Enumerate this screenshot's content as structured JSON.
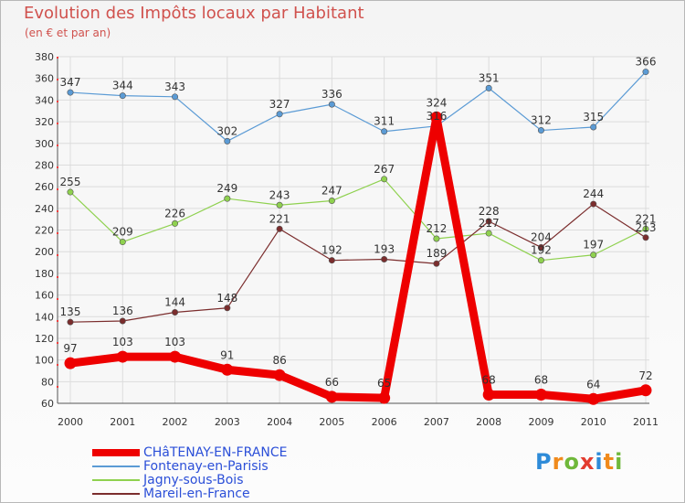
{
  "chart_data": {
    "type": "line",
    "title": "Evolution des Impôts locaux par Habitant",
    "subtitle": "(en € et par an)",
    "xlabel": "",
    "ylabel": "",
    "ylim": [
      60,
      380
    ],
    "yticks": [
      60,
      80,
      100,
      120,
      140,
      160,
      180,
      200,
      220,
      240,
      260,
      280,
      300,
      320,
      340,
      360,
      380
    ],
    "categories": [
      "2000",
      "2001",
      "2002",
      "2003",
      "2004",
      "2005",
      "2006",
      "2007",
      "2008",
      "2009",
      "2010",
      "2011"
    ],
    "series": [
      {
        "name": "CHâTENAY-EN-FRANCE",
        "color": "#ee0000",
        "emphasis": true,
        "values": [
          97,
          103,
          103,
          91,
          86,
          66,
          65,
          324,
          68,
          68,
          64,
          72
        ],
        "labels": [
          "97",
          "103",
          "103",
          "91",
          "86",
          "66",
          "65",
          "324",
          "68",
          "68",
          "64",
          "72"
        ]
      },
      {
        "name": "Fontenay-en-Parisis",
        "color": "#5b9bd5",
        "emphasis": false,
        "values": [
          347,
          344,
          343,
          302,
          327,
          336,
          311,
          316,
          351,
          312,
          315,
          366
        ],
        "labels": [
          "347",
          "344",
          "343",
          "302",
          "327",
          "336",
          "311",
          "316",
          "351",
          "312",
          "315",
          "366"
        ]
      },
      {
        "name": "Jagny-sous-Bois",
        "color": "#8fd14f",
        "emphasis": false,
        "values": [
          255,
          209,
          226,
          249,
          243,
          247,
          267,
          212,
          217,
          192,
          197,
          221
        ],
        "labels": [
          "255",
          "209",
          "226",
          "249",
          "243",
          "247",
          "267",
          "212",
          "217",
          "192",
          "197",
          "221"
        ]
      },
      {
        "name": "Mareil-en-France",
        "color": "#7b2d2d",
        "emphasis": false,
        "values": [
          135,
          136,
          144,
          148,
          221,
          192,
          193,
          189,
          228,
          204,
          244,
          213
        ],
        "labels": [
          "135",
          "136",
          "144",
          "148",
          "221",
          "192",
          "193",
          "189",
          "228",
          "204",
          "244",
          "213"
        ]
      }
    ],
    "grid": true,
    "legend": "bottom-left"
  },
  "logo": {
    "text": "Proxiti"
  }
}
